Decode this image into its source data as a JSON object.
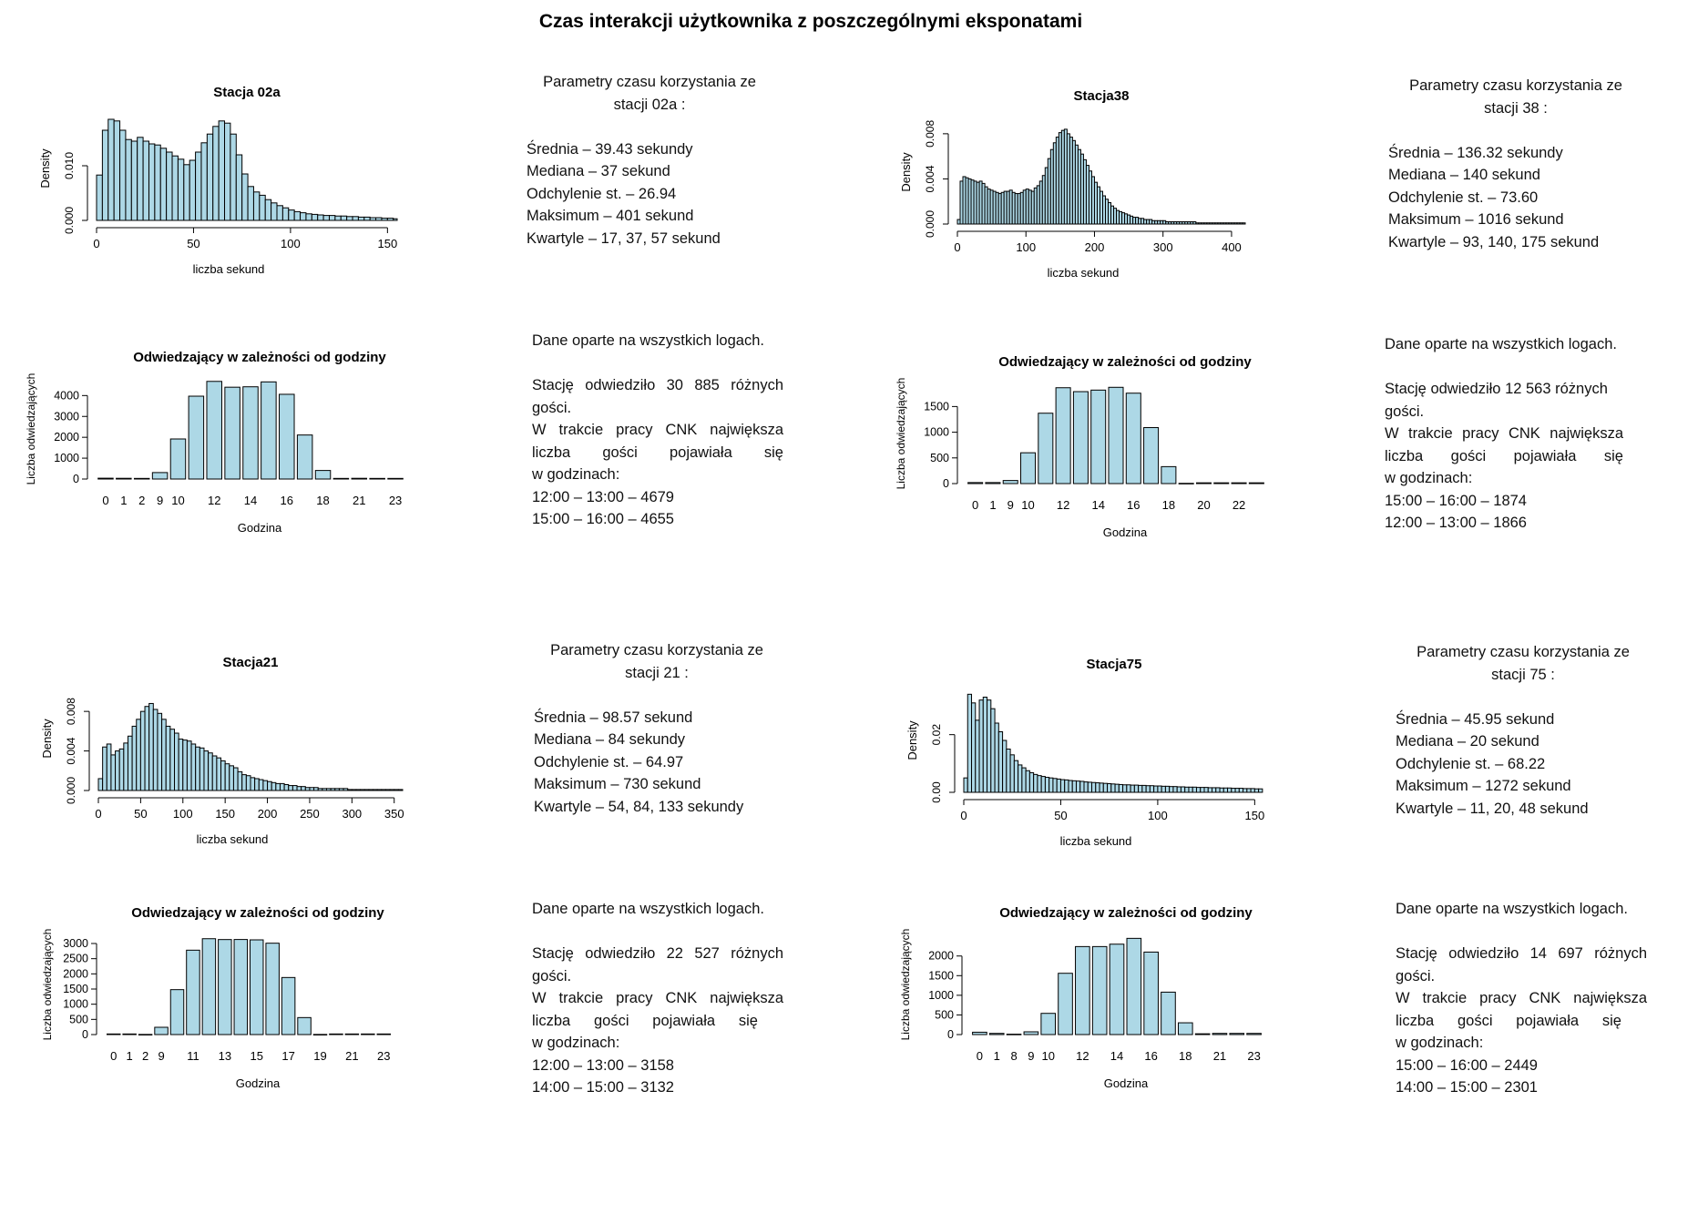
{
  "title": "Czas interakcji użytkownika z poszczególnymi eksponatami",
  "colors": {
    "bar_fill": "#add8e6",
    "bar_stroke": "#000000"
  },
  "stations": [
    {
      "id": "02a",
      "hist": {
        "title": "Stacja 02a",
        "xlabel": "liczba sekund",
        "ylabel": "Density",
        "xlim": [
          0,
          155
        ],
        "ylim": [
          0,
          0.019
        ],
        "xticks": [
          0,
          50,
          100,
          150
        ],
        "yticks": [
          0,
          0.01
        ],
        "ytick_labels": [
          "0.000",
          "0.010"
        ]
      },
      "bars": {
        "title": "Odwiedzający w zależności od godziny",
        "xlabel": "Godzina",
        "ylabel": "Liczba odwiedzających",
        "ylim": [
          0,
          4800
        ],
        "yticks": [
          0,
          1000,
          2000,
          3000,
          4000
        ],
        "ytick_labels": [
          "0",
          "1000",
          "2000",
          "3000",
          "4000"
        ]
      },
      "text": {
        "heading": [
          "Parametry czasu korzystania ze",
          "stacji 02a :"
        ],
        "stats": [
          "Średnia – 39.43 sekundy",
          "Mediana – 37 sekund",
          "Odchylenie st. – 26.94",
          "Maksimum – 401 sekund",
          "Kwartyle – 17, 37, 57 sekund"
        ],
        "basis": "Dane oparte na wszystkich logach.",
        "visit_lines": [
          "Stację odwiedziło 30 885 różnych",
          "gości.",
          "W trakcie pracy CNK największa",
          "liczba gości pojawiała się",
          "w godzinach:"
        ],
        "peaks": [
          "12:00 – 13:00 – 4679",
          "15:00 – 16:00 – 4655"
        ]
      }
    },
    {
      "id": "38",
      "hist": {
        "title": "Stacja38",
        "xlabel": "liczba sekund",
        "ylabel": "Density",
        "xlim": [
          0,
          420
        ],
        "ylim": [
          0,
          0.0092
        ],
        "xticks": [
          0,
          100,
          200,
          300,
          400
        ],
        "yticks": [
          0,
          0.004,
          0.008
        ],
        "ytick_labels": [
          "0.000",
          "0.004",
          "0.008"
        ]
      },
      "bars": {
        "title": "Odwiedzający w zależności od godziny",
        "xlabel": "Godzina",
        "ylabel": "Liczba odwiedzających",
        "ylim": [
          0,
          1950
        ],
        "yticks": [
          0,
          500,
          1000,
          1500
        ],
        "ytick_labels": [
          "0",
          "500",
          "1000",
          "1500"
        ]
      },
      "text": {
        "heading": [
          "Parametry czasu korzystania ze",
          "stacji 38 :"
        ],
        "stats": [
          "Średnia – 136.32 sekundy",
          "Mediana – 140 sekund",
          "Odchylenie st. – 73.60",
          "Maksimum – 1016 sekund",
          "Kwartyle – 93, 140, 175 sekund"
        ],
        "basis": "Dane oparte na wszystkich logach.",
        "visit_lines": [
          "Stację odwiedziło 12 563 różnych",
          "gości.",
          "W trakcie pracy CNK największa",
          "liczba gości pojawiała się",
          "w godzinach:"
        ],
        "peaks": [
          "15:00 – 16:00 – 1874",
          "12:00 – 13:00 – 1866"
        ]
      }
    },
    {
      "id": "21",
      "hist": {
        "title": "Stacja21",
        "xlabel": "liczba sekund",
        "ylabel": "Density",
        "xlim": [
          0,
          360
        ],
        "ylim": [
          0,
          0.0105
        ],
        "xticks": [
          0,
          50,
          100,
          150,
          200,
          250,
          300,
          350
        ],
        "yticks": [
          0,
          0.004,
          0.008
        ],
        "ytick_labels": [
          "0.000",
          "0.004",
          "0.008"
        ]
      },
      "bars": {
        "title": "Odwiedzający w zależności od godziny",
        "xlabel": "Godzina",
        "ylabel": "Liczba odwiedzających",
        "ylim": [
          0,
          3300
        ],
        "yticks": [
          0,
          500,
          1000,
          1500,
          2000,
          2500,
          3000
        ],
        "ytick_labels": [
          "0",
          "500",
          "1000",
          "1500",
          "2000",
          "2500",
          "3000"
        ]
      },
      "text": {
        "heading": [
          "Parametry czasu korzystania ze",
          "stacji 21 :"
        ],
        "stats": [
          "Średnia – 98.57 sekund",
          "Mediana – 84 sekundy",
          "Odchylenie st. – 64.97",
          "Maksimum – 730 sekund",
          "Kwartyle – 54, 84, 133 sekundy"
        ],
        "basis": "Dane oparte na wszystkich logach.",
        "visit_lines": [
          "Stację odwiedziło 22 527 różnych",
          "gości.",
          "W trakcie pracy CNK największa",
          "liczba gości pojawiała się",
          "w godzinach:"
        ],
        "peaks": [
          "12:00 – 13:00 – 3158",
          "14:00 – 15:00 – 3132"
        ]
      }
    },
    {
      "id": "75",
      "hist": {
        "title": "Stacja75",
        "xlabel": "liczba sekund",
        "ylabel": "Density",
        "xlim": [
          0,
          155
        ],
        "ylim": [
          0,
          0.036
        ],
        "xticks": [
          0,
          50,
          100,
          150
        ],
        "yticks": [
          0,
          0.02
        ],
        "ytick_labels": [
          "0.00",
          "0.02"
        ]
      },
      "bars": {
        "title": "Odwiedzający w zależności od godziny",
        "xlabel": "Godzina",
        "ylabel": "Liczba odwiedzających",
        "ylim": [
          0,
          2550
        ],
        "yticks": [
          0,
          500,
          1000,
          1500,
          2000
        ],
        "ytick_labels": [
          "0",
          "500",
          "1000",
          "1500",
          "2000"
        ]
      },
      "text": {
        "heading": [
          "Parametry czasu korzystania ze",
          "stacji 75 :"
        ],
        "stats": [
          "Średnia – 45.95 sekund",
          "Mediana – 20 sekund",
          "Odchylenie st. – 68.22",
          "Maksimum – 1272 sekund",
          "Kwartyle – 11, 20, 48 sekund"
        ],
        "basis": "Dane oparte na wszystkich logach.",
        "visit_lines": [
          "Stację odwiedziło 14 697 różnych",
          "gości.",
          "W trakcie pracy CNK największa",
          "liczba gości pojawiała się",
          "w godzinach:"
        ],
        "peaks": [
          "15:00 – 16:00 – 2449",
          "14:00 – 15:00 – 2301"
        ]
      }
    }
  ],
  "chart_data": [
    {
      "type": "bar",
      "title": "Stacja 02a",
      "xlabel": "liczba sekund",
      "ylabel": "Density",
      "x_start": 0,
      "bin_width": 3,
      "values": [
        0.0083,
        0.0165,
        0.0185,
        0.0182,
        0.0165,
        0.0148,
        0.0145,
        0.0152,
        0.0145,
        0.014,
        0.0138,
        0.0132,
        0.0125,
        0.0118,
        0.0112,
        0.0102,
        0.011,
        0.0125,
        0.0142,
        0.0158,
        0.0172,
        0.0182,
        0.0178,
        0.0158,
        0.012,
        0.0085,
        0.0062,
        0.0052,
        0.0046,
        0.0038,
        0.0032,
        0.0027,
        0.0023,
        0.0019,
        0.0016,
        0.0014,
        0.0012,
        0.0011,
        0.001,
        0.0009,
        0.0009,
        0.0008,
        0.0008,
        0.0007,
        0.0007,
        0.0006,
        0.0006,
        0.0005,
        0.0005,
        0.0004,
        0.0004,
        0.0003
      ],
      "hours": [
        {
          "label": "0",
          "value": 40
        },
        {
          "label": "1",
          "value": 35
        },
        {
          "label": "2",
          "value": 30
        },
        {
          "label": "9",
          "value": 310
        },
        {
          "label": "10",
          "value": 1920
        },
        {
          "label": "11",
          "value": 3970
        },
        {
          "label": "12",
          "value": 4679
        },
        {
          "label": "13",
          "value": 4400
        },
        {
          "label": "14",
          "value": 4420
        },
        {
          "label": "15",
          "value": 4655
        },
        {
          "label": "16",
          "value": 4060
        },
        {
          "label": "17",
          "value": 2110
        },
        {
          "label": "18",
          "value": 410
        },
        {
          "label": "19",
          "value": 30
        },
        {
          "label": "21",
          "value": 35
        },
        {
          "label": "22",
          "value": 30
        },
        {
          "label": "23",
          "value": 30
        }
      ],
      "hour_tick_labels": [
        "0",
        "1",
        "2",
        "9",
        "10",
        "12",
        "14",
        "16",
        "18",
        "21",
        "23"
      ]
    },
    {
      "type": "bar",
      "title": "Stacja38",
      "xlabel": "liczba sekund",
      "ylabel": "Density",
      "x_start": 0,
      "bin_width": 4,
      "values": [
        0.0004,
        0.0038,
        0.0042,
        0.0041,
        0.004,
        0.0039,
        0.0038,
        0.0037,
        0.0038,
        0.0036,
        0.0033,
        0.0031,
        0.003,
        0.0029,
        0.0028,
        0.0027,
        0.0028,
        0.0029,
        0.0029,
        0.003,
        0.0028,
        0.0027,
        0.0027,
        0.0028,
        0.003,
        0.0031,
        0.003,
        0.0029,
        0.0032,
        0.0034,
        0.0038,
        0.0043,
        0.005,
        0.0058,
        0.0066,
        0.0072,
        0.0077,
        0.0081,
        0.0083,
        0.0084,
        0.008,
        0.0077,
        0.0074,
        0.007,
        0.0066,
        0.0062,
        0.0057,
        0.0052,
        0.0047,
        0.0042,
        0.0037,
        0.0033,
        0.0029,
        0.0025,
        0.0022,
        0.0019,
        0.0016,
        0.0014,
        0.0012,
        0.0011,
        0.001,
        0.0009,
        0.0008,
        0.0007,
        0.0006,
        0.0006,
        0.0005,
        0.0005,
        0.0004,
        0.0004,
        0.0004,
        0.0003,
        0.0003,
        0.0003,
        0.0003,
        0.0003,
        0.0002,
        0.0002,
        0.0002,
        0.0002,
        0.0002,
        0.0002,
        0.0002,
        0.0002,
        0.0002,
        0.0002,
        0.0002,
        0.0001,
        0.0001,
        0.0001,
        0.0001,
        0.0001,
        0.0001,
        0.0001,
        0.0001,
        0.0001,
        0.0001,
        0.0001,
        0.0001,
        0.0001,
        0.0001,
        0.0001,
        0.0001,
        0.0001,
        0.0001
      ],
      "hours": [
        {
          "label": "0",
          "value": 20
        },
        {
          "label": "1",
          "value": 20
        },
        {
          "label": "9",
          "value": 60
        },
        {
          "label": "10",
          "value": 600
        },
        {
          "label": "11",
          "value": 1370
        },
        {
          "label": "12",
          "value": 1866
        },
        {
          "label": "13",
          "value": 1790
        },
        {
          "label": "14",
          "value": 1820
        },
        {
          "label": "15",
          "value": 1874
        },
        {
          "label": "16",
          "value": 1760
        },
        {
          "label": "17",
          "value": 1090
        },
        {
          "label": "18",
          "value": 330
        },
        {
          "label": "19",
          "value": 5
        },
        {
          "label": "20",
          "value": 15
        },
        {
          "label": "21",
          "value": 15
        },
        {
          "label": "22",
          "value": 15
        },
        {
          "label": "23",
          "value": 15
        }
      ],
      "hour_tick_labels": [
        "0",
        "1",
        "9",
        "10",
        "12",
        "14",
        "16",
        "18",
        "20",
        "22"
      ]
    },
    {
      "type": "bar",
      "title": "Stacja21",
      "xlabel": "liczba sekund",
      "ylabel": "Density",
      "x_start": 0,
      "bin_width": 5,
      "values": [
        0.0012,
        0.0044,
        0.0047,
        0.0036,
        0.004,
        0.0042,
        0.0048,
        0.0055,
        0.0065,
        0.0072,
        0.008,
        0.0085,
        0.0088,
        0.0082,
        0.0078,
        0.0072,
        0.0065,
        0.0062,
        0.0058,
        0.0052,
        0.0051,
        0.005,
        0.0047,
        0.0044,
        0.0043,
        0.004,
        0.0038,
        0.0035,
        0.0033,
        0.003,
        0.0027,
        0.0025,
        0.0023,
        0.0019,
        0.0016,
        0.0015,
        0.0013,
        0.0012,
        0.0011,
        0.001,
        0.0009,
        0.0008,
        0.0007,
        0.0007,
        0.0006,
        0.0005,
        0.0005,
        0.0004,
        0.0004,
        0.0003,
        0.0003,
        0.0003,
        0.0002,
        0.0002,
        0.0002,
        0.0002,
        0.0002,
        0.0002,
        0.0002,
        0.0001,
        0.0001,
        0.0001,
        0.0001,
        0.0001,
        0.0001,
        0.0001,
        0.0001,
        0.0001,
        0.0001,
        0.0001,
        0.0001,
        0.0001
      ],
      "hours": [
        {
          "label": "0",
          "value": 20
        },
        {
          "label": "1",
          "value": 20
        },
        {
          "label": "2",
          "value": 5
        },
        {
          "label": "9",
          "value": 240
        },
        {
          "label": "10",
          "value": 1480
        },
        {
          "label": "11",
          "value": 2780
        },
        {
          "label": "12",
          "value": 3158
        },
        {
          "label": "13",
          "value": 3130
        },
        {
          "label": "14",
          "value": 3132
        },
        {
          "label": "15",
          "value": 3120
        },
        {
          "label": "16",
          "value": 3010
        },
        {
          "label": "17",
          "value": 1880
        },
        {
          "label": "18",
          "value": 560
        },
        {
          "label": "19",
          "value": 5
        },
        {
          "label": "20",
          "value": 20
        },
        {
          "label": "21",
          "value": 20
        },
        {
          "label": "22",
          "value": 20
        },
        {
          "label": "23",
          "value": 20
        }
      ],
      "hour_tick_labels": [
        "0",
        "1",
        "2",
        "9",
        "11",
        "13",
        "15",
        "17",
        "19",
        "21",
        "23"
      ]
    },
    {
      "type": "bar",
      "title": "Stacja75",
      "xlabel": "liczba sekund",
      "ylabel": "Density",
      "x_start": 0,
      "bin_width": 2,
      "values": [
        0.005,
        0.034,
        0.031,
        0.025,
        0.032,
        0.033,
        0.032,
        0.029,
        0.024,
        0.021,
        0.018,
        0.015,
        0.013,
        0.011,
        0.0095,
        0.0085,
        0.0075,
        0.0068,
        0.0062,
        0.0058,
        0.0055,
        0.0052,
        0.005,
        0.0048,
        0.0046,
        0.0044,
        0.0043,
        0.0041,
        0.004,
        0.0039,
        0.0038,
        0.0036,
        0.0035,
        0.0034,
        0.0033,
        0.0032,
        0.0031,
        0.003,
        0.0029,
        0.0028,
        0.0027,
        0.0026,
        0.0026,
        0.0025,
        0.0025,
        0.0024,
        0.0024,
        0.0023,
        0.0023,
        0.0022,
        0.0022,
        0.0021,
        0.0021,
        0.002,
        0.002,
        0.0019,
        0.0019,
        0.0018,
        0.0018,
        0.0018,
        0.0017,
        0.0017,
        0.0017,
        0.0016,
        0.0016,
        0.0016,
        0.0015,
        0.0015,
        0.0015,
        0.0014,
        0.0014,
        0.0014,
        0.0013,
        0.0013,
        0.0013,
        0.0012,
        0.0012
      ],
      "hours": [
        {
          "label": "0",
          "value": 60
        },
        {
          "label": "1",
          "value": 30
        },
        {
          "label": "8",
          "value": 10
        },
        {
          "label": "9",
          "value": 70
        },
        {
          "label": "10",
          "value": 540
        },
        {
          "label": "11",
          "value": 1560
        },
        {
          "label": "12",
          "value": 2240
        },
        {
          "label": "13",
          "value": 2240
        },
        {
          "label": "14",
          "value": 2301
        },
        {
          "label": "15",
          "value": 2449
        },
        {
          "label": "16",
          "value": 2100
        },
        {
          "label": "17",
          "value": 1080
        },
        {
          "label": "18",
          "value": 300
        },
        {
          "label": "19",
          "value": 20
        },
        {
          "label": "21",
          "value": 30
        },
        {
          "label": "22",
          "value": 30
        },
        {
          "label": "23",
          "value": 30
        }
      ],
      "hour_tick_labels": [
        "0",
        "1",
        "8",
        "9",
        "10",
        "12",
        "14",
        "16",
        "18",
        "21",
        "23"
      ]
    }
  ]
}
